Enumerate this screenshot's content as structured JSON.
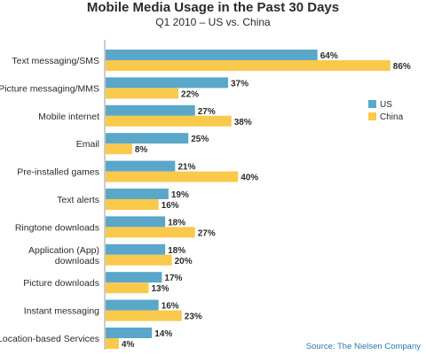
{
  "chart_data": {
    "type": "bar",
    "orientation": "horizontal",
    "title": "Mobile Media Usage in the Past 30 Days",
    "subtitle": "Q1 2010 – US vs. China",
    "categories": [
      "Text messaging/SMS",
      "Picture messaging/MMS",
      "Mobile internet",
      "Email",
      "Pre-installed games",
      "Text alerts",
      "Ringtone downloads",
      "Application (App) downloads",
      "Picture downloads",
      "Instant messaging",
      "Location-based Services"
    ],
    "category_lines": [
      [
        "Text messaging/SMS"
      ],
      [
        "Picture messaging/MMS"
      ],
      [
        "Mobile internet"
      ],
      [
        "Email"
      ],
      [
        "Pre-installed games"
      ],
      [
        "Text alerts"
      ],
      [
        "Ringtone downloads"
      ],
      [
        "Application (App)",
        "downloads"
      ],
      [
        "Picture downloads"
      ],
      [
        "Instant messaging"
      ],
      [
        "Location-based Services"
      ]
    ],
    "series": [
      {
        "name": "US",
        "color": "#5ba7c9",
        "values": [
          64,
          37,
          27,
          25,
          21,
          19,
          18,
          18,
          17,
          16,
          14
        ]
      },
      {
        "name": "China",
        "color": "#f9c94b",
        "values": [
          86,
          22,
          38,
          8,
          40,
          16,
          27,
          20,
          13,
          23,
          4
        ]
      }
    ],
    "value_suffix": "%",
    "xlim": [
      0,
      100
    ],
    "legend_position": "right",
    "grid": false,
    "source": "Source: The Nielsen Company"
  }
}
